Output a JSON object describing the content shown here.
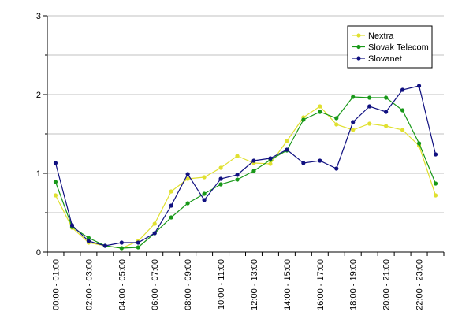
{
  "chart_data": {
    "type": "line",
    "x": [
      "00:00 - 01:00",
      "01:00 - 02:00",
      "02:00 - 03:00",
      "03:00 - 04:00",
      "04:00 - 05:00",
      "05:00 - 06:00",
      "06:00 - 07:00",
      "07:00 - 08:00",
      "08:00 - 09:00",
      "09:00 - 10:00",
      "10:00 - 11:00",
      "11:00 - 12:00",
      "12:00 - 13:00",
      "13:00 - 14:00",
      "14:00 - 15:00",
      "15:00 - 16:00",
      "16:00 - 17:00",
      "17:00 - 18:00",
      "18:00 - 19:00",
      "19:00 - 20:00",
      "20:00 - 21:00",
      "21:00 - 22:00",
      "22:00 - 23:00",
      "23:00 - 24:00"
    ],
    "x_tick_labels": [
      "00:00 - 01:00",
      "02:00 - 03:00",
      "04:00 - 05:00",
      "06:00 - 07:00",
      "08:00 - 09:00",
      "10:00 - 11:00",
      "12:00 - 13:00",
      "14:00 - 15:00",
      "16:00 - 17:00",
      "18:00 - 19:00",
      "20:00 - 21:00",
      "22:00 - 23:00"
    ],
    "y_tick_labels": [
      "0",
      "1",
      "2",
      "3"
    ],
    "ylim": [
      0,
      3
    ],
    "y_minor_step": 0.5,
    "grid": true,
    "legend_position": "top-right",
    "series": [
      {
        "name": "Nextra",
        "color": "#e0e030",
        "values": [
          0.72,
          0.31,
          0.12,
          0.08,
          0.05,
          0.14,
          0.36,
          0.77,
          0.93,
          0.95,
          1.07,
          1.22,
          1.13,
          1.12,
          1.41,
          1.71,
          1.85,
          1.62,
          1.55,
          1.63,
          1.6,
          1.55,
          1.35,
          0.72
        ]
      },
      {
        "name": "Slovak Telecom",
        "color": "#189818",
        "values": [
          0.89,
          0.32,
          0.18,
          0.08,
          0.05,
          0.06,
          0.24,
          0.44,
          0.62,
          0.74,
          0.86,
          0.92,
          1.03,
          1.17,
          1.29,
          1.68,
          1.78,
          1.7,
          1.97,
          1.96,
          1.96,
          1.8,
          1.38,
          0.87
        ]
      },
      {
        "name": "Slovanet",
        "color": "#101080",
        "values": [
          1.13,
          0.34,
          0.14,
          0.08,
          0.12,
          0.12,
          0.24,
          0.59,
          0.99,
          0.66,
          0.93,
          0.98,
          1.16,
          1.19,
          1.3,
          1.13,
          1.16,
          1.06,
          1.65,
          1.85,
          1.78,
          2.06,
          2.11,
          1.24
        ]
      }
    ]
  }
}
